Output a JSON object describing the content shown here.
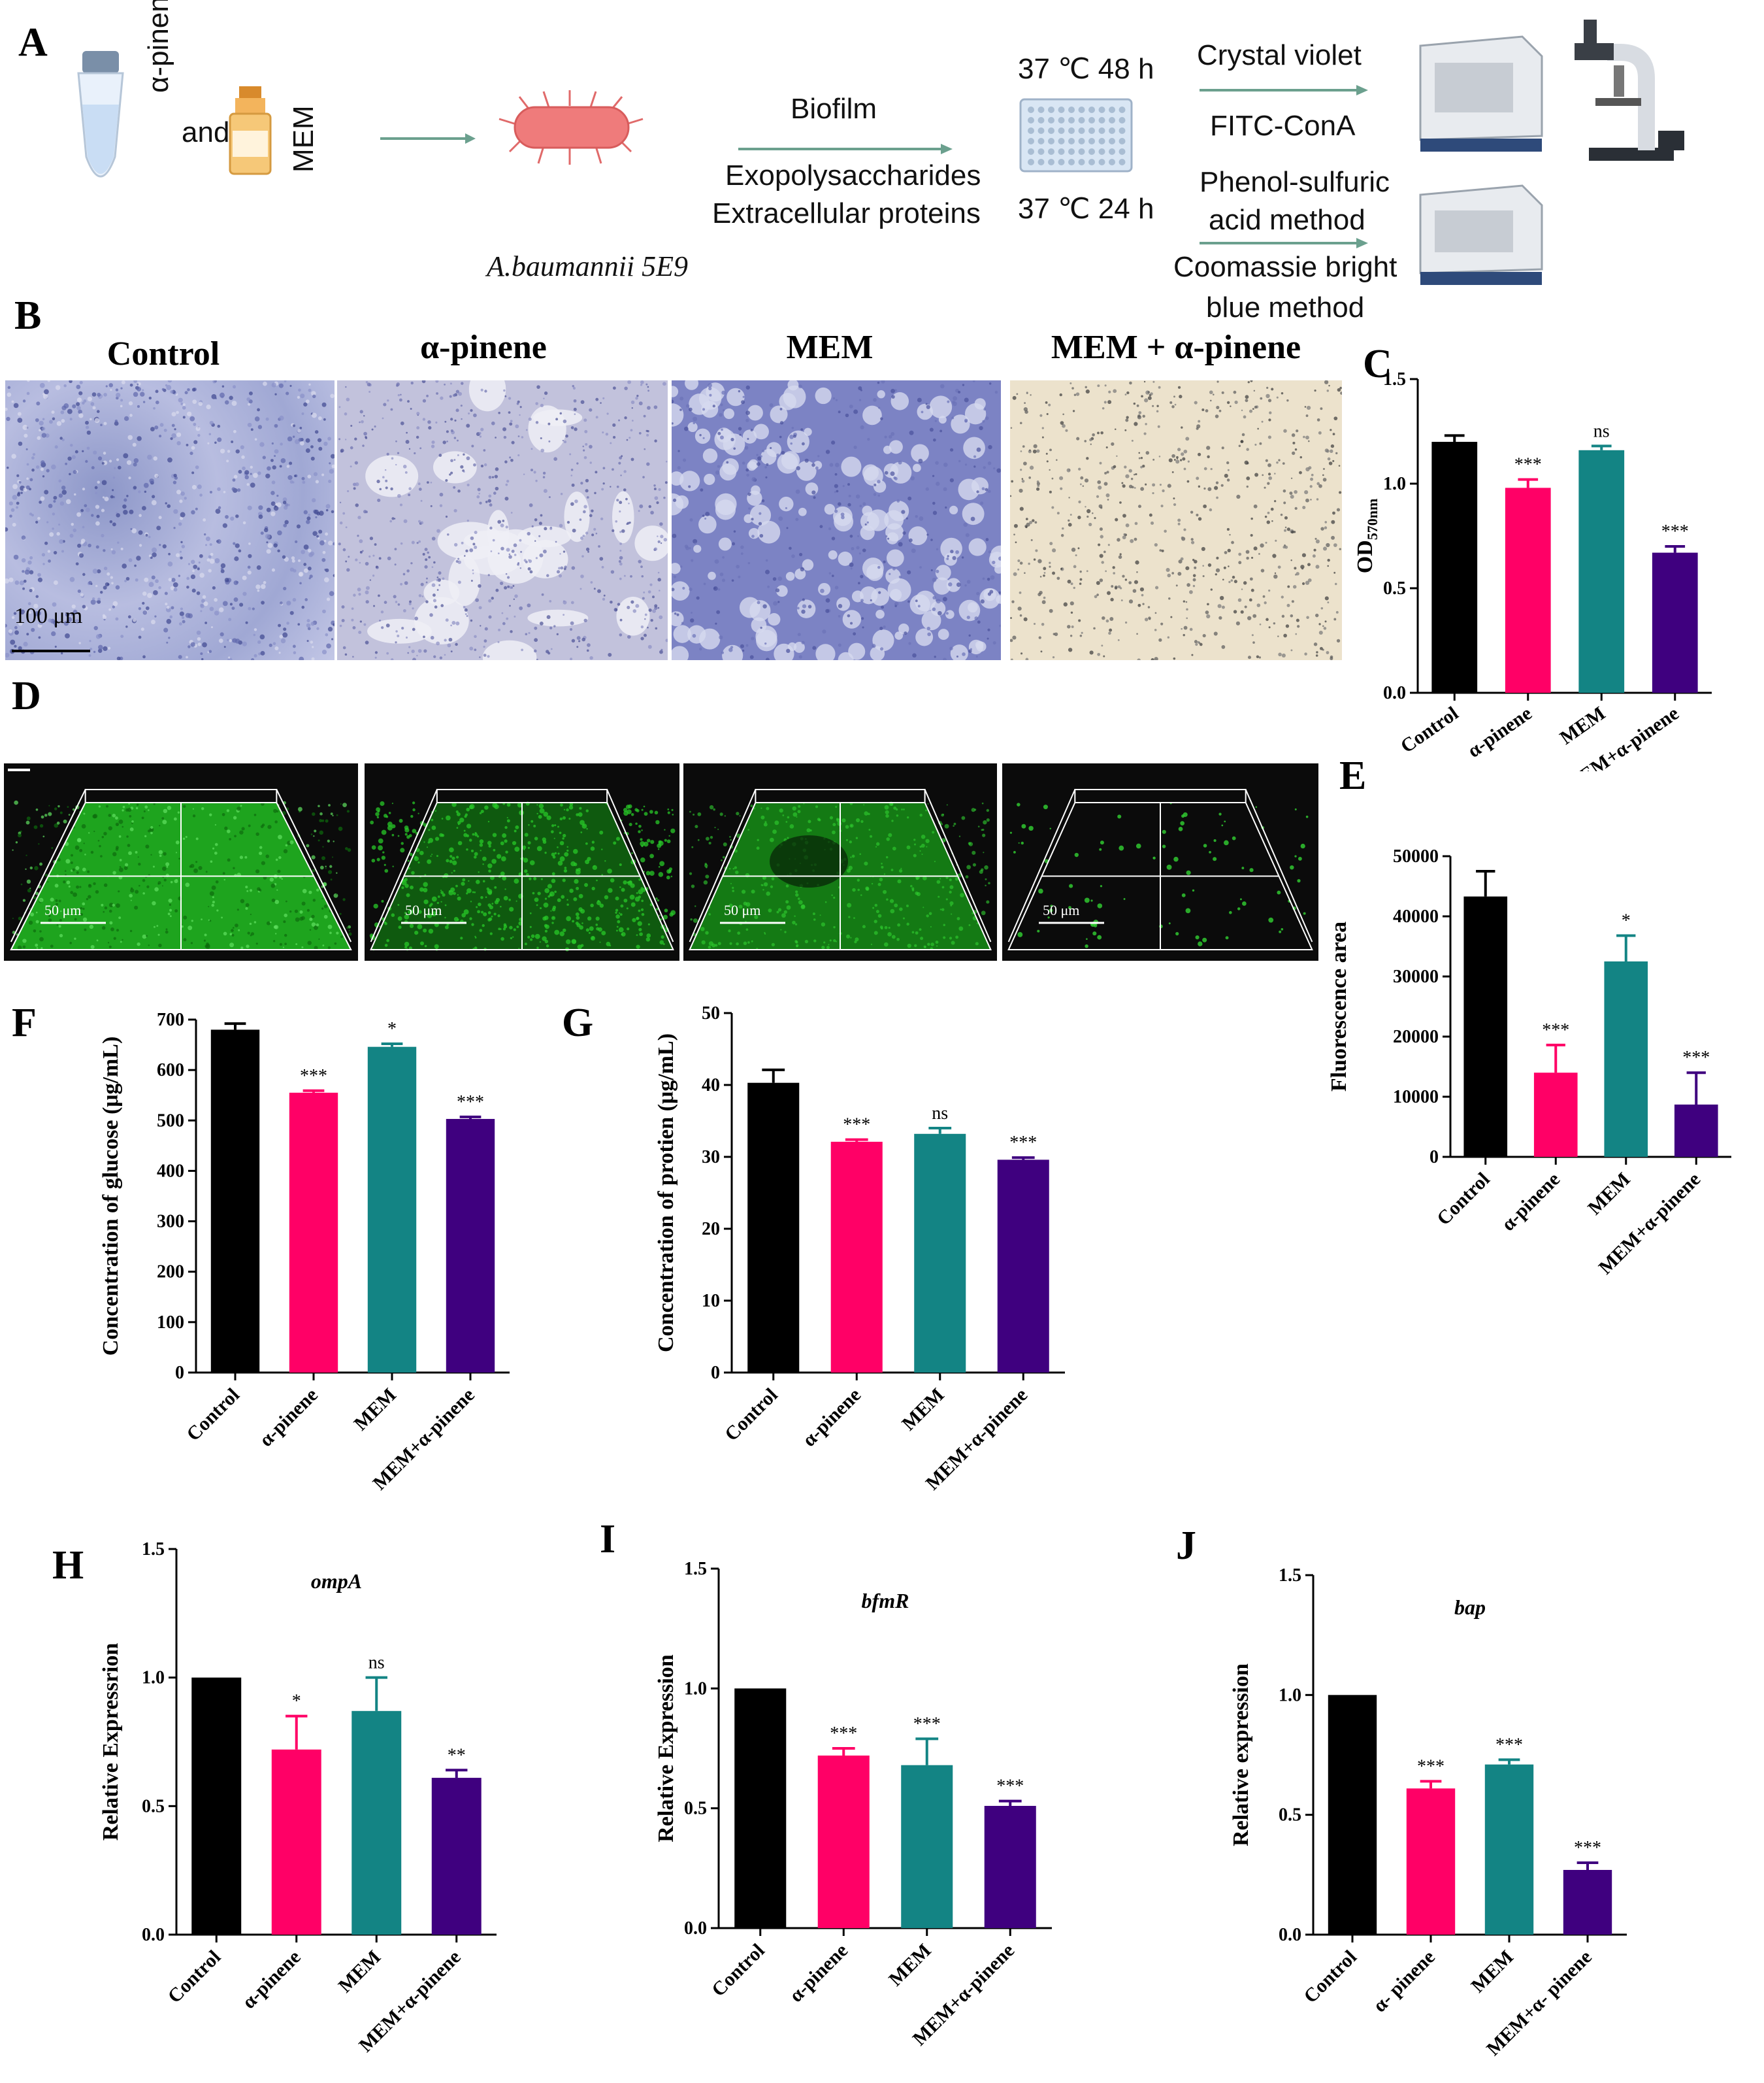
{
  "panel_letters": {
    "A": "A",
    "B": "B",
    "C": "C",
    "D": "D",
    "E": "E",
    "F": "F",
    "G": "G",
    "H": "H",
    "I": "I",
    "J": "J"
  },
  "workflow": {
    "reagent_1": "α-pinene",
    "and": "and",
    "reagent_2": "MEM",
    "organism": "A.baumannii 5E9",
    "biofilm_label": "Biofilm",
    "eps_label": "Exopolysaccharides",
    "ecp_label": "Extracellular proteins",
    "cond_48": "37 ℃ 48 h",
    "cond_24": "37 ℃ 24 h",
    "cv_label": "Crystal violet",
    "fitc_label": "FITC-ConA",
    "phenol_label_1": "Phenol-sulfuric",
    "phenol_label_2": "acid method",
    "coomassie_label_1": "Coomassie bright",
    "coomassie_label_2": "blue method"
  },
  "microscopy": {
    "titles": [
      "Control",
      "α-pinene",
      "MEM",
      "MEM + α-pinene"
    ],
    "scale_bar_b": "100 μm",
    "scale_bar_d": "50 μm"
  },
  "colors": {
    "control": "#000000",
    "pinene": "#ff0066",
    "mem": "#138484",
    "combo": "#3f007f"
  },
  "chart_data": [
    {
      "id": "C",
      "type": "bar",
      "categories": [
        "Control",
        "α-pinene",
        "MEM",
        "MEM+α-pinene"
      ],
      "values": [
        1.2,
        0.98,
        1.16,
        0.67
      ],
      "errors": [
        0.03,
        0.04,
        0.02,
        0.03
      ],
      "significance": [
        "",
        "***",
        "ns",
        "***"
      ],
      "ylabel": "OD",
      "ylabel_sub": "570nm",
      "ylim": [
        0,
        1.5
      ],
      "yticks": [
        "0.0",
        "0.5",
        "1.0",
        "1.5"
      ]
    },
    {
      "id": "E",
      "type": "bar",
      "categories": [
        "Control",
        "α-pinene",
        "MEM",
        "MEM+α-pinene"
      ],
      "values": [
        43300,
        14000,
        32500,
        8700
      ],
      "errors": [
        4200,
        4600,
        4300,
        5300
      ],
      "significance": [
        "",
        "***",
        "*",
        "***"
      ],
      "ylabel": "Fluorescence area",
      "ylim": [
        0,
        50000
      ],
      "yticks": [
        "0",
        "10000",
        "20000",
        "30000",
        "40000",
        "50000"
      ]
    },
    {
      "id": "F",
      "type": "bar",
      "categories": [
        "Control",
        "α-pinene",
        "MEM",
        "MEM+α-pinene"
      ],
      "values": [
        680,
        555,
        646,
        503
      ],
      "errors": [
        12,
        4,
        6,
        4
      ],
      "significance": [
        "",
        "***",
        "*",
        "***"
      ],
      "ylabel": "Concentration of glucose (μg/mL)",
      "ylim": [
        0,
        700
      ],
      "yticks": [
        "0",
        "100",
        "200",
        "300",
        "400",
        "500",
        "600",
        "700"
      ]
    },
    {
      "id": "G",
      "type": "bar",
      "categories": [
        "Control",
        "α-pinene",
        "MEM",
        "MEM+α-pinene"
      ],
      "values": [
        40.3,
        32.1,
        33.2,
        29.6
      ],
      "errors": [
        1.8,
        0.3,
        0.8,
        0.3
      ],
      "significance": [
        "",
        "***",
        "ns",
        "***"
      ],
      "ylabel": "Concentration of protien (μg/mL)",
      "ylim": [
        0,
        50
      ],
      "yticks": [
        "0",
        "10",
        "20",
        "30",
        "40",
        "50"
      ]
    },
    {
      "id": "H",
      "type": "bar",
      "title": "ompA",
      "categories": [
        "Control",
        "α-pinene",
        "MEM",
        "MEM+α-pinene"
      ],
      "values": [
        1.0,
        0.72,
        0.87,
        0.61
      ],
      "errors": [
        0.0,
        0.13,
        0.13,
        0.03
      ],
      "significance": [
        "",
        "*",
        "ns",
        "**"
      ],
      "ylabel": "Relative Expressrion",
      "ylim": [
        0,
        1.5
      ],
      "yticks": [
        "0.0",
        "0.5",
        "1.0",
        "1.5"
      ]
    },
    {
      "id": "I",
      "type": "bar",
      "title": "bfmR",
      "categories": [
        "Control",
        "α-pinene",
        "MEM",
        "MEM+α-pinene"
      ],
      "values": [
        1.0,
        0.72,
        0.68,
        0.51
      ],
      "errors": [
        0.0,
        0.03,
        0.11,
        0.02
      ],
      "significance": [
        "",
        "***",
        "***",
        "***"
      ],
      "ylabel": "Relative Expression",
      "ylim": [
        0,
        1.5
      ],
      "yticks": [
        "0.0",
        "0.5",
        "1.0",
        "1.5"
      ]
    },
    {
      "id": "J",
      "type": "bar",
      "title": "bap",
      "categories": [
        "Control",
        "α- pinene",
        "MEM",
        "MEM+α- pinene"
      ],
      "values": [
        1.0,
        0.61,
        0.71,
        0.27
      ],
      "errors": [
        0.0,
        0.03,
        0.02,
        0.03
      ],
      "significance": [
        "",
        "***",
        "***",
        "***"
      ],
      "ylabel": "Relative expression",
      "ylim": [
        0,
        1.5
      ],
      "yticks": [
        "0.0",
        "0.5",
        "1.0",
        "1.5"
      ]
    }
  ]
}
